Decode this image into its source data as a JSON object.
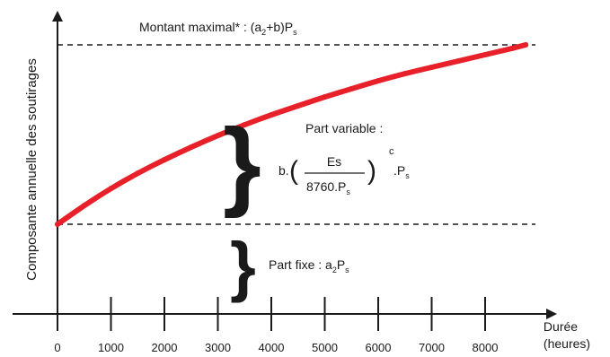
{
  "chart_data": {
    "type": "line",
    "title": "",
    "xlabel": "Durée",
    "xlabel_unit": "(heures)",
    "ylabel": "Composante annuelle des soutirages",
    "xlim": [
      0,
      9000
    ],
    "x_ticks": [
      0,
      1000,
      2000,
      3000,
      4000,
      5000,
      6000,
      7000,
      8000
    ],
    "x_tick_labels": [
      "0",
      "1000",
      "2000",
      "3000",
      "4000",
      "5000",
      "6000",
      "7000",
      "8000"
    ],
    "y_scale": "relative",
    "series": [
      {
        "color": "#e8202a",
        "x": [
          0,
          500,
          1000,
          1500,
          2000,
          2500,
          3000,
          3500,
          4000,
          4500,
          5000,
          5500,
          6000,
          6500,
          7000,
          7500,
          8000,
          8500,
          8760
        ],
        "y": [
          0,
          0.105,
          0.2,
          0.285,
          0.36,
          0.43,
          0.495,
          0.555,
          0.61,
          0.66,
          0.71,
          0.755,
          0.8,
          0.84,
          0.875,
          0.91,
          0.945,
          0.98,
          1.0
        ]
      }
    ],
    "reference_lines": [
      {
        "y": 1.0,
        "style": "dashed",
        "label": "Montant maximal* : (a2+b)Ps"
      },
      {
        "y": 0.0,
        "style": "dashed"
      }
    ],
    "annotations": {
      "max_amount": {
        "prefix": "Montant maximal* : (a",
        "sub1": "2",
        "middle": "+b)P",
        "sub2": "s"
      },
      "variable_part": {
        "label": "Part variable :",
        "b_prefix": "b.",
        "numerator": "Es",
        "denominator_prefix": "8760.P",
        "denominator_sub": "s",
        "exponent": "c",
        "suffix": ".P",
        "suffix_sub": "s"
      },
      "fixed_part": {
        "prefix": "Part fixe : a",
        "sub1": "2",
        "middle": "P",
        "sub2": "s"
      }
    }
  }
}
